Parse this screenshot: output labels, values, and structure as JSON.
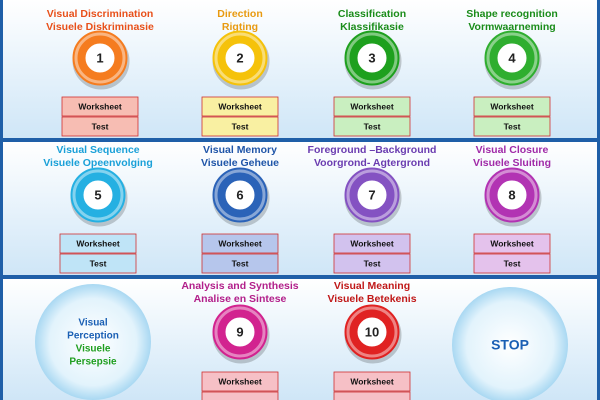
{
  "modules": [
    {
      "title": [
        "Visual Discrimination",
        "Visuele Diskriminasie"
      ],
      "number": "1",
      "buttons": [
        "Worksheet",
        "Test"
      ]
    },
    {
      "title": [
        "Direction",
        "Rigting"
      ],
      "number": "2",
      "buttons": [
        "Worksheet",
        "Test"
      ]
    },
    {
      "title": [
        "Classification",
        "Klassifikasie"
      ],
      "number": "3",
      "buttons": [
        "Worksheet",
        "Test"
      ]
    },
    {
      "title": [
        "Shape recognition",
        "Vormwaarneming"
      ],
      "number": "4",
      "buttons": [
        "Worksheet",
        "Test"
      ]
    },
    {
      "title": [
        "Visual Sequence",
        "Visuele Opeenvolging"
      ],
      "number": "5",
      "buttons": [
        "Worksheet",
        "Test"
      ]
    },
    {
      "title": [
        "Visual Memory",
        "Visuele Geheue"
      ],
      "number": "6",
      "buttons": [
        "Worksheet",
        "Test"
      ]
    },
    {
      "title": [
        "Foreground –Background",
        "Voorgrond- Agtergrond"
      ],
      "number": "7",
      "buttons": [
        "Worksheet",
        "Test"
      ]
    },
    {
      "title": [
        "Visual Closure",
        "Visuele Sluiting"
      ],
      "number": "8",
      "buttons": [
        "Worksheet",
        "Test"
      ]
    },
    {
      "title": [
        "Analysis and Synthesis",
        "Analise en Sintese"
      ],
      "number": "9",
      "buttons": [
        "Worksheet"
      ]
    },
    {
      "title": [
        "Visual Meaning",
        "Visuele Betekenis"
      ],
      "number": "10",
      "buttons": [
        "Worksheet"
      ]
    }
  ],
  "home": {
    "lines": [
      "Visual",
      "Perception",
      "Visuele",
      "Persepsie"
    ]
  },
  "stop": {
    "label": "STOP"
  }
}
